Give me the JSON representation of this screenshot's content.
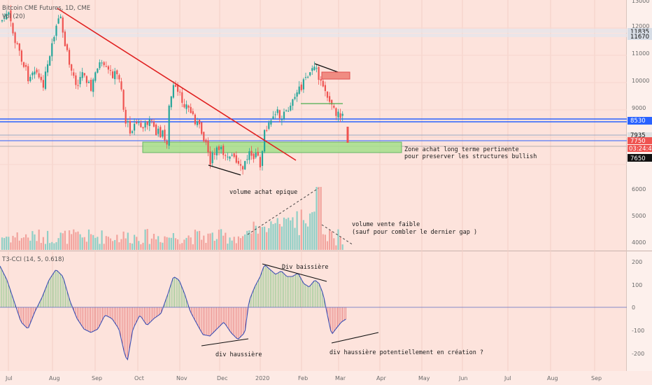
{
  "symbol": {
    "title": "Bitcoin CME Futures, 1D, CME",
    "volume_label": "Vol (20)",
    "indicator_label": "T3-CCI (14, 5, 0.618)"
  },
  "price_axis": {
    "ticks": [
      "13000",
      "12000",
      "11000",
      "10000",
      "9000",
      "8000"
    ],
    "tags": [
      {
        "text": "11835",
        "bg": "#d7dde6",
        "color": "#111111"
      },
      {
        "text": "11670",
        "bg": "#d7dde6",
        "color": "#111111"
      },
      {
        "text": "8530",
        "bg": "#2962ff",
        "color": "#ffffff"
      },
      {
        "text": "7935",
        "bg": "#e0e0e0",
        "color": "#111111"
      },
      {
        "text": "7750",
        "bg": "#ef5350",
        "color": "#ffffff"
      },
      {
        "text": "03:24:49",
        "bg": "#ef5350",
        "color": "#ffffff"
      },
      {
        "text": "7650",
        "bg": "#111111",
        "color": "#ffffff"
      }
    ]
  },
  "volume_axis": {
    "ticks": [
      "6000",
      "5000",
      "4000"
    ]
  },
  "cci_axis": {
    "ticks": [
      "200",
      "100",
      "0",
      "-100",
      "-200"
    ]
  },
  "time_axis": {
    "labels": [
      "Jul",
      "Aug",
      "Sep",
      "Oct",
      "Nov",
      "Dec",
      "2020",
      "Feb",
      "Mar",
      "Apr",
      "May",
      "Jun",
      "Jul",
      "Aug",
      "Sep"
    ]
  },
  "annotations": {
    "zone_line1": "Zone achat long terme pertinente",
    "zone_line2": "pour preserver les structures bullish",
    "volume_buy": "volume achat epique",
    "volume_sell1": "volume vente faible",
    "volume_sell2": "(sauf pour combler le dernier gap )",
    "div_bearish": "Div baissière",
    "div_bullish": "div haussière",
    "div_potential": "div haussière potentiellement en création ?"
  },
  "colors": {
    "up": "#26a69a",
    "down": "#ef5350",
    "trendline": "#e02020",
    "zone_fill": "#a5e08c",
    "level_blue": "#2962ff",
    "background": "#fde3dc"
  }
}
